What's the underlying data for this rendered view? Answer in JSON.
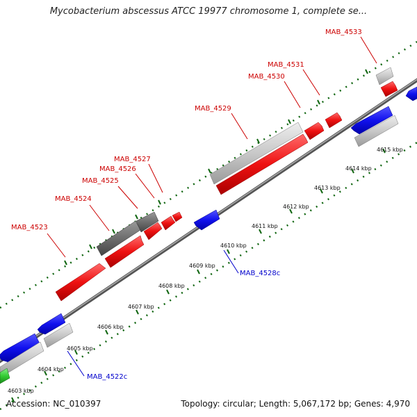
{
  "title": "Mycobacterium abscessus ATCC 19977 chromosome 1, complete se...",
  "footer": {
    "accession": "Accession: NC_010397",
    "topology": "Topology: circular; Length: 5,067,172 bp; Genes: 4,970"
  },
  "kbp_labels": [
    "4603 kbp",
    "4604 kbp",
    "4605 kbp",
    "4606 kbp",
    "4607 kbp",
    "4608 kbp",
    "4609 kbp",
    "4610 kbp",
    "4611 kbp",
    "4612 kbp",
    "4613 kbp",
    "4614 kbp",
    "4615 kbp"
  ],
  "genes": {
    "mab4523": "MAB_4523",
    "mab4524": "MAB_4524",
    "mab4525": "MAB_4525",
    "mab4526": "MAB_4526",
    "mab4527": "MAB_4527",
    "mab4529": "MAB_4529",
    "mab4530": "MAB_4530",
    "mab4531": "MAB_4531",
    "mab4533": "MAB_4533",
    "mab4528c": "MAB_4528c",
    "mab4522c": "MAB_4522c"
  },
  "colors": {
    "cds_red": "#ee1111",
    "gray_light": "#c8c8c8",
    "gray_dark": "#6e6e6e",
    "blue": "#1111ee",
    "green": "#33cc33",
    "tick_green": "#116611",
    "backbone": "#888888"
  }
}
